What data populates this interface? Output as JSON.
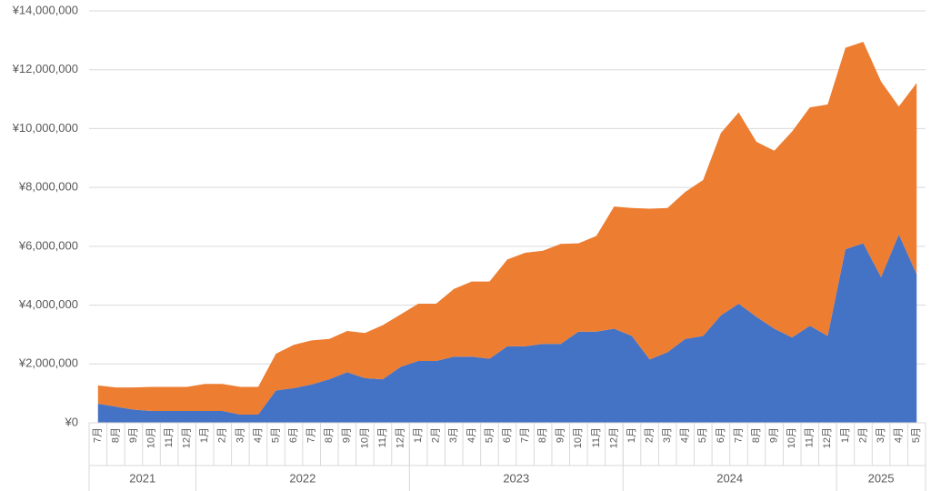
{
  "chart_data": {
    "type": "stacked_area",
    "categories": [
      "7月",
      "8月",
      "9月",
      "10月",
      "11月",
      "12月",
      "1月",
      "2月",
      "3月",
      "4月",
      "5月",
      "6月",
      "7月",
      "8月",
      "9月",
      "10月",
      "11月",
      "12月",
      "1月",
      "2月",
      "3月",
      "4月",
      "5月",
      "6月",
      "7月",
      "8月",
      "9月",
      "10月",
      "11月",
      "12月",
      "1月",
      "2月",
      "3月",
      "4月",
      "5月",
      "6月",
      "7月",
      "8月",
      "9月",
      "10月",
      "11月",
      "12月",
      "1月",
      "2月",
      "3月",
      "4月",
      "5月"
    ],
    "years": [
      {
        "label": "2021",
        "months": 6
      },
      {
        "label": "2022",
        "months": 12
      },
      {
        "label": "2023",
        "months": 12
      },
      {
        "label": "2024",
        "months": 12
      },
      {
        "label": "2025",
        "months": 5
      }
    ],
    "series": [
      {
        "color": "#4472c4",
        "values": [
          650000,
          550000,
          450000,
          400000,
          400000,
          400000,
          400000,
          400000,
          280000,
          280000,
          1100000,
          1180000,
          1300000,
          1480000,
          1720000,
          1520000,
          1480000,
          1900000,
          2100000,
          2100000,
          2250000,
          2250000,
          2180000,
          2600000,
          2600000,
          2680000,
          2680000,
          3100000,
          3100000,
          3200000,
          2950000,
          2150000,
          2400000,
          2850000,
          2950000,
          3650000,
          4050000,
          3600000,
          3200000,
          2900000,
          3300000,
          2950000,
          5900000,
          6100000,
          4950000,
          6400000,
          5050000
        ]
      },
      {
        "color": "#ed7d31",
        "values": [
          620000,
          650000,
          750000,
          820000,
          820000,
          820000,
          920000,
          920000,
          940000,
          940000,
          1250000,
          1470000,
          1500000,
          1370000,
          1400000,
          1530000,
          1840000,
          1780000,
          1950000,
          1950000,
          2300000,
          2550000,
          2620000,
          2950000,
          3180000,
          3170000,
          3400000,
          3000000,
          3250000,
          4150000,
          4350000,
          5130000,
          4900000,
          5000000,
          5300000,
          6200000,
          6500000,
          5950000,
          6050000,
          7000000,
          7420000,
          7870000,
          6850000,
          6850000,
          6650000,
          4350000,
          6500000
        ]
      }
    ],
    "ylim": [
      0,
      14000000
    ],
    "yticks": [
      {
        "value": 0,
        "label": "¥0"
      },
      {
        "value": 2000000,
        "label": "¥2,000,000"
      },
      {
        "value": 4000000,
        "label": "¥4,000,000"
      },
      {
        "value": 6000000,
        "label": "¥6,000,000"
      },
      {
        "value": 8000000,
        "label": "¥8,000,000"
      },
      {
        "value": 10000000,
        "label": "¥10,000,000"
      },
      {
        "value": 12000000,
        "label": "¥12,000,000"
      },
      {
        "value": 14000000,
        "label": "¥14,000,000"
      }
    ],
    "grid": true
  }
}
